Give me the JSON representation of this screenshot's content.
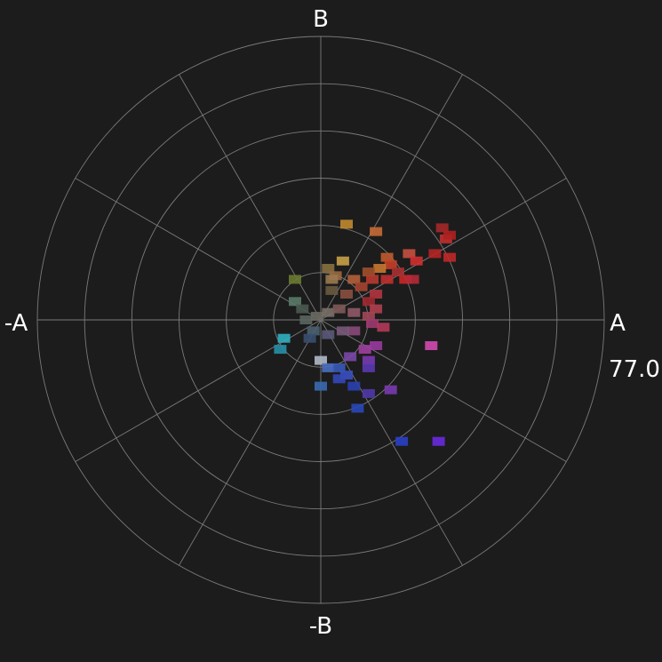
{
  "chart_data": {
    "type": "scatter",
    "title": "",
    "coordinate_system": "polar",
    "axis_labels": {
      "right": "A",
      "top": "B",
      "left": "-A",
      "bottom": "-B"
    },
    "max_radius": 77.0,
    "max_radius_label": "77.0",
    "rings": 6,
    "spoke_angles_deg": [
      0,
      30,
      60,
      90,
      120,
      150,
      180,
      210,
      240,
      270,
      300,
      330
    ],
    "grid": true,
    "background": "#1c1c1c",
    "grid_color": "#7a7a7a",
    "text_color": "#ffffff",
    "points": [
      {
        "x": 7,
        "y": 26,
        "color": "#c08a30"
      },
      {
        "x": 15,
        "y": 24,
        "color": "#c86a35"
      },
      {
        "x": 33,
        "y": 25,
        "color": "#a52828"
      },
      {
        "x": 34,
        "y": 22,
        "color": "#c03030"
      },
      {
        "x": 35,
        "y": 23,
        "color": "#b02020"
      },
      {
        "x": 31,
        "y": 18,
        "color": "#b52525"
      },
      {
        "x": 35,
        "y": 17,
        "color": "#c02828"
      },
      {
        "x": 24,
        "y": 18,
        "color": "#c85040"
      },
      {
        "x": 26,
        "y": 16,
        "color": "#d03030"
      },
      {
        "x": 18,
        "y": 17,
        "color": "#c05a30"
      },
      {
        "x": 19,
        "y": 15,
        "color": "#c54028"
      },
      {
        "x": 16,
        "y": 14,
        "color": "#c87830"
      },
      {
        "x": 13,
        "y": 13,
        "color": "#a0502a"
      },
      {
        "x": 6,
        "y": 16,
        "color": "#c8a048"
      },
      {
        "x": 2,
        "y": 14,
        "color": "#8a7040"
      },
      {
        "x": 4,
        "y": 12,
        "color": "#9a6a40"
      },
      {
        "x": 9,
        "y": 11,
        "color": "#b26038"
      },
      {
        "x": 14,
        "y": 11,
        "color": "#b83a30"
      },
      {
        "x": 18,
        "y": 11,
        "color": "#c03030"
      },
      {
        "x": 23,
        "y": 11,
        "color": "#c82828"
      },
      {
        "x": 25,
        "y": 11,
        "color": "#b52a38"
      },
      {
        "x": 21,
        "y": 13,
        "color": "#a83030"
      },
      {
        "x": 11,
        "y": 9,
        "color": "#a54530"
      },
      {
        "x": 15,
        "y": 7,
        "color": "#b23540"
      },
      {
        "x": 13,
        "y": 5,
        "color": "#a02a30"
      },
      {
        "x": 7,
        "y": 7,
        "color": "#8a5040"
      },
      {
        "x": 3,
        "y": 8,
        "color": "#6a5a40"
      },
      {
        "x": 3,
        "y": 11,
        "color": "#9a7a50"
      },
      {
        "x": -7,
        "y": 11,
        "color": "#6a7a30"
      },
      {
        "x": -7,
        "y": 5,
        "color": "#5a7a68"
      },
      {
        "x": -5,
        "y": 3,
        "color": "#4a5a50"
      },
      {
        "x": -4,
        "y": 0,
        "color": "#5a6560"
      },
      {
        "x": -1,
        "y": 1,
        "color": "#6a6a62"
      },
      {
        "x": 2,
        "y": 2,
        "color": "#7a7068"
      },
      {
        "x": 5,
        "y": 3,
        "color": "#805a5a"
      },
      {
        "x": 9,
        "y": 2,
        "color": "#905a68"
      },
      {
        "x": 13,
        "y": 1,
        "color": "#a04858"
      },
      {
        "x": 15,
        "y": 3,
        "color": "#b04050"
      },
      {
        "x": 14,
        "y": -1,
        "color": "#a03a70"
      },
      {
        "x": 17,
        "y": -2,
        "color": "#b23a5a"
      },
      {
        "x": 9,
        "y": -3,
        "color": "#8a4a7a"
      },
      {
        "x": 6,
        "y": -3,
        "color": "#7a5a7a"
      },
      {
        "x": 2,
        "y": -4,
        "color": "#5a5a7a"
      },
      {
        "x": -2,
        "y": -3,
        "color": "#4a6070"
      },
      {
        "x": -3,
        "y": -5,
        "color": "#3a5070"
      },
      {
        "x": -10,
        "y": -5,
        "color": "#30b0c0"
      },
      {
        "x": -11,
        "y": -8,
        "color": "#2890a8"
      },
      {
        "x": 0,
        "y": -11,
        "color": "#b0b8c8"
      },
      {
        "x": 2,
        "y": -13,
        "color": "#4a70c0"
      },
      {
        "x": 5,
        "y": -13,
        "color": "#3a58b8"
      },
      {
        "x": 8,
        "y": -10,
        "color": "#7a48a8"
      },
      {
        "x": 12,
        "y": -8,
        "color": "#a040a0"
      },
      {
        "x": 15,
        "y": -7,
        "color": "#9a3aa0"
      },
      {
        "x": 13,
        "y": -11,
        "color": "#7a3ab0"
      },
      {
        "x": 13,
        "y": -13,
        "color": "#5a3ab0"
      },
      {
        "x": 7,
        "y": -15,
        "color": "#3a50c0"
      },
      {
        "x": 5,
        "y": -16,
        "color": "#3448b8"
      },
      {
        "x": 9,
        "y": -18,
        "color": "#2a40b0"
      },
      {
        "x": 13,
        "y": -20,
        "color": "#5038a8"
      },
      {
        "x": 19,
        "y": -19,
        "color": "#7a3ab0"
      },
      {
        "x": 0,
        "y": -18,
        "color": "#3a6ab0"
      },
      {
        "x": 10,
        "y": -24,
        "color": "#2a48b8"
      },
      {
        "x": 30,
        "y": -7,
        "color": "#d04ab0"
      },
      {
        "x": 22,
        "y": -33,
        "color": "#2a40c8"
      },
      {
        "x": 32,
        "y": -33,
        "color": "#6a2ae0"
      }
    ]
  }
}
